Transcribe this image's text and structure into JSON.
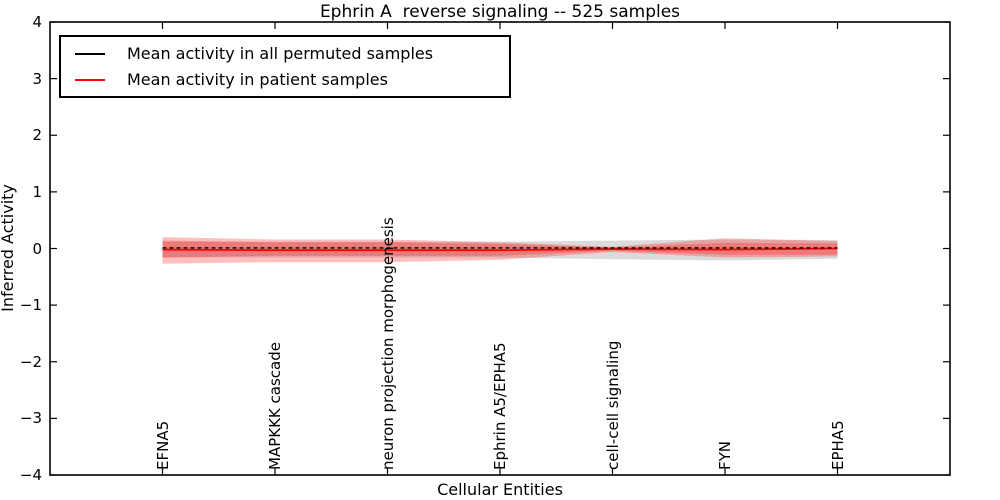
{
  "chart_data": {
    "type": "line",
    "title": "Ephrin A  reverse signaling -- 525 samples",
    "xlabel": "Cellular Entities",
    "ylabel": "Inferred Activity",
    "ylim": [
      -4,
      4
    ],
    "grid": false,
    "legend_position": "upper left",
    "yticks": [
      {
        "value": 4,
        "label": "4"
      },
      {
        "value": 3,
        "label": "3"
      },
      {
        "value": 2,
        "label": "2"
      },
      {
        "value": 1,
        "label": "1"
      },
      {
        "value": 0,
        "label": "0"
      },
      {
        "value": -1,
        "label": "−1"
      },
      {
        "value": -2,
        "label": "−2"
      },
      {
        "value": -3,
        "label": "−3"
      },
      {
        "value": -4,
        "label": "−4"
      }
    ],
    "categories": [
      "EFNA5",
      "MAPKKK cascade",
      "neuron projection morphogenesis",
      "Ephrin A5/EPHA5",
      "cell-cell signaling",
      "FYN",
      "EPHA5"
    ],
    "series": [
      {
        "name": "Mean activity in all permuted samples",
        "color": "#000000",
        "style": "dashed",
        "values": [
          0.01,
          0.01,
          0.01,
          0.01,
          0.01,
          0.01,
          0.01
        ]
      },
      {
        "name": "Mean activity in patient samples",
        "color": "#ff0000",
        "style": "solid",
        "values": [
          -0.02,
          -0.03,
          -0.03,
          -0.03,
          -0.01,
          -0.02,
          0.0
        ]
      }
    ],
    "bands": [
      {
        "name": "permuted-samples-range",
        "color": "#999999",
        "opacity": 0.35,
        "upper": [
          0.12,
          0.12,
          0.12,
          0.12,
          0.14,
          0.16,
          0.15
        ],
        "lower": [
          -0.16,
          -0.16,
          -0.16,
          -0.16,
          -0.19,
          -0.21,
          -0.18
        ]
      },
      {
        "name": "patient-samples-range-outer",
        "color": "#ff0000",
        "opacity": 0.25,
        "upper": [
          0.2,
          0.16,
          0.16,
          0.11,
          0.03,
          0.18,
          0.13
        ],
        "lower": [
          -0.27,
          -0.24,
          -0.24,
          -0.2,
          -0.06,
          -0.16,
          -0.14
        ]
      },
      {
        "name": "patient-samples-range-inner",
        "color": "#ff0000",
        "opacity": 0.25,
        "upper": [
          0.14,
          0.11,
          0.11,
          0.08,
          0.02,
          0.1,
          0.09
        ],
        "lower": [
          -0.16,
          -0.13,
          -0.13,
          -0.13,
          -0.04,
          -0.11,
          -0.11
        ]
      }
    ]
  }
}
